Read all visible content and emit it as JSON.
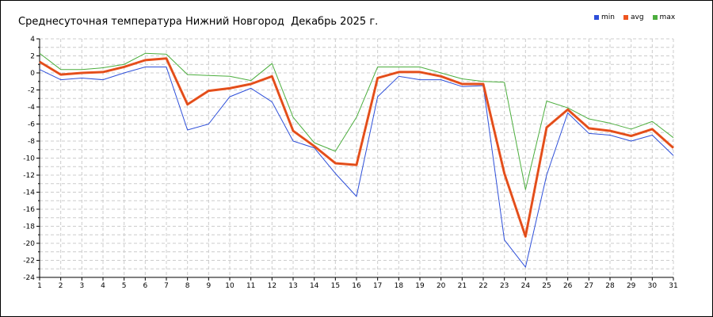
{
  "chart_data": {
    "type": "line",
    "title": "Среднесуточная температура Нижний Новгород  Декабрь 2025 г.",
    "xlabel": "",
    "ylabel": "",
    "x": [
      1,
      2,
      3,
      4,
      5,
      6,
      7,
      8,
      9,
      10,
      11,
      12,
      13,
      14,
      15,
      16,
      17,
      18,
      19,
      20,
      21,
      22,
      23,
      24,
      25,
      26,
      27,
      28,
      29,
      30,
      31
    ],
    "ylim": [
      -24,
      4
    ],
    "yticks": [
      4,
      2,
      0,
      -2,
      -4,
      -6,
      -8,
      -10,
      -12,
      -14,
      -16,
      -18,
      -20,
      -22,
      -24
    ],
    "grid": true,
    "legend": "top-right",
    "series": [
      {
        "name": "min",
        "color": "#2e4fd9",
        "values": [
          0.4,
          -0.8,
          -0.6,
          -0.8,
          0.0,
          0.7,
          0.7,
          -6.7,
          -6.0,
          -2.8,
          -1.8,
          -3.4,
          -8.0,
          -8.8,
          -11.8,
          -14.5,
          -2.8,
          -0.4,
          -0.8,
          -0.8,
          -1.6,
          -1.5,
          -19.6,
          -22.8,
          -12.0,
          -4.7,
          -7.1,
          -7.3,
          -8.0,
          -7.3,
          -9.7
        ]
      },
      {
        "name": "avg",
        "color": "#ee5520",
        "values": [
          1.3,
          -0.2,
          0.0,
          0.1,
          0.7,
          1.5,
          1.7,
          -3.7,
          -2.1,
          -1.8,
          -1.3,
          -0.4,
          -6.8,
          -8.6,
          -10.6,
          -10.8,
          -0.6,
          0.1,
          0.1,
          -0.4,
          -1.3,
          -1.3,
          -11.8,
          -19.2,
          -6.4,
          -4.3,
          -6.5,
          -6.8,
          -7.4,
          -6.6,
          -8.8
        ]
      },
      {
        "name": "max",
        "color": "#4cae3e",
        "values": [
          2.3,
          0.4,
          0.4,
          0.6,
          1.0,
          2.3,
          2.2,
          -0.2,
          -0.3,
          -0.4,
          -0.9,
          1.1,
          -5.2,
          -8.2,
          -9.2,
          -5.2,
          0.7,
          0.7,
          0.7,
          0.0,
          -0.7,
          -1.0,
          -1.1,
          -13.7,
          -3.3,
          -4.1,
          -5.4,
          -5.9,
          -6.6,
          -5.7,
          -7.6
        ]
      }
    ]
  }
}
